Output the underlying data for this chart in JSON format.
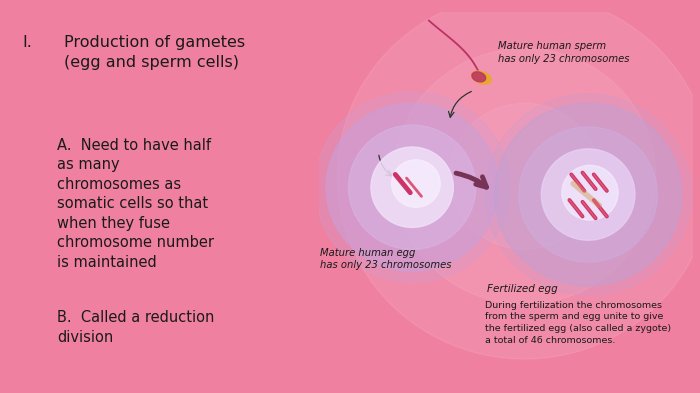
{
  "bg_color": "#f080a0",
  "right_panel_bg_outer": "#f5c0d0",
  "right_panel_bg_inner": "#fdf0f8",
  "text_color": "#1a1a1a",
  "title_roman": "I.",
  "title_text": "Production of gametes\n(egg and sperm cells)",
  "point_a_text": "A.  Need to have half\nas many\nchromosomes as\nsomatic cells so that\nwhen they fuse\nchromosome number\nis maintained",
  "point_b_text": "B.  Called a reduction\ndivision",
  "image_caption_sperm": "Mature human sperm\nhas only 23 chromosomes",
  "image_caption_egg": "Mature human egg\nhas only 23 chromosomes",
  "image_caption_fertilized": "Fertilized egg",
  "image_caption_bottom": "During fertilization the chromosomes\nfrom the sperm and egg unite to give\nthe fertilized egg (also called a zygote)\na total of 46 chromosomes.",
  "font_size_title": 11.5,
  "font_size_body": 10.5,
  "font_size_img_label": 7.2,
  "font_size_img_bottom": 6.8,
  "egg_color_outer": "#c8a0d8",
  "egg_color_mid": "#d8b8e8",
  "egg_color_inner": "#ead0f4",
  "egg_nucleus_color": "#f0e0f8",
  "chrom_color1": "#cc3366",
  "chrom_color2": "#dd5577",
  "fert_color_outer": "#c0a0d4",
  "fert_color_mid": "#cdb0e0",
  "fert_nucleus_color": "#e8d0f2",
  "sperm_head_orange": "#e8a830",
  "sperm_head_pink": "#bb3366",
  "arrow_color": "#773355",
  "sperm_arrow_color": "#333333"
}
